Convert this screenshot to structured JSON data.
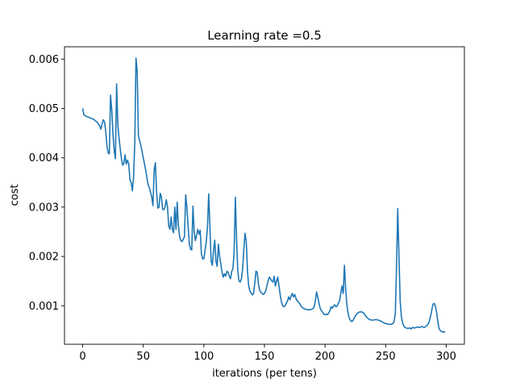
{
  "chart_data": {
    "type": "line",
    "title": "Learning rate =0.5",
    "xlabel": "iterations (per tens)",
    "ylabel": "cost",
    "xlim": [
      -15,
      315
    ],
    "ylim": [
      0.00022,
      0.00625
    ],
    "xticks": [
      0,
      50,
      100,
      150,
      200,
      250,
      300
    ],
    "yticks": [
      0.001,
      0.002,
      0.003,
      0.004,
      0.005,
      0.006
    ],
    "ytick_labels": [
      "0.001",
      "0.002",
      "0.003",
      "0.004",
      "0.005",
      "0.006"
    ],
    "grid": false,
    "line_color": "#1f77b4",
    "series": [
      {
        "points": [
          [
            0,
            0.005
          ],
          [
            1,
            0.00487
          ],
          [
            3,
            0.00484
          ],
          [
            6,
            0.00481
          ],
          [
            9,
            0.00478
          ],
          [
            12,
            0.00472
          ],
          [
            14,
            0.00465
          ],
          [
            15,
            0.00458
          ],
          [
            16,
            0.00468
          ],
          [
            17,
            0.00477
          ],
          [
            18,
            0.00473
          ],
          [
            19,
            0.00455
          ],
          [
            20,
            0.00425
          ],
          [
            21,
            0.0041
          ],
          [
            22,
            0.00408
          ],
          [
            23,
            0.00527
          ],
          [
            24,
            0.00497
          ],
          [
            25,
            0.00448
          ],
          [
            26,
            0.00415
          ],
          [
            27,
            0.00398
          ],
          [
            28,
            0.0055
          ],
          [
            29,
            0.00467
          ],
          [
            30,
            0.0044
          ],
          [
            31,
            0.00418
          ],
          [
            32,
            0.00398
          ],
          [
            33,
            0.00385
          ],
          [
            34,
            0.00389
          ],
          [
            35,
            0.00406
          ],
          [
            36,
            0.00387
          ],
          [
            37,
            0.00395
          ],
          [
            38,
            0.00388
          ],
          [
            39,
            0.00355
          ],
          [
            40,
            0.0035
          ],
          [
            41,
            0.00333
          ],
          [
            42,
            0.0036
          ],
          [
            43,
            0.0043
          ],
          [
            44,
            0.00602
          ],
          [
            45,
            0.00575
          ],
          [
            46,
            0.00445
          ],
          [
            47,
            0.00435
          ],
          [
            48,
            0.00425
          ],
          [
            50,
            0.004
          ],
          [
            52,
            0.00375
          ],
          [
            54,
            0.00345
          ],
          [
            55,
            0.0034
          ],
          [
            56,
            0.0033
          ],
          [
            57,
            0.0032
          ],
          [
            58,
            0.00303
          ],
          [
            59,
            0.00375
          ],
          [
            60,
            0.0039
          ],
          [
            61,
            0.0033
          ],
          [
            62,
            0.00298
          ],
          [
            63,
            0.003
          ],
          [
            64,
            0.00328
          ],
          [
            65,
            0.0032
          ],
          [
            66,
            0.00295
          ],
          [
            67,
            0.00295
          ],
          [
            68,
            0.003
          ],
          [
            69,
            0.00315
          ],
          [
            70,
            0.003
          ],
          [
            71,
            0.00262
          ],
          [
            72,
            0.00255
          ],
          [
            73,
            0.0028
          ],
          [
            74,
            0.00255
          ],
          [
            75,
            0.00248
          ],
          [
            76,
            0.003
          ],
          [
            77,
            0.00255
          ],
          [
            78,
            0.0031
          ],
          [
            79,
            0.00262
          ],
          [
            80,
            0.0024
          ],
          [
            81,
            0.00232
          ],
          [
            82,
            0.0023
          ],
          [
            83,
            0.00235
          ],
          [
            84,
            0.0024
          ],
          [
            85,
            0.00325
          ],
          [
            86,
            0.003
          ],
          [
            87,
            0.00262
          ],
          [
            88,
            0.00225
          ],
          [
            89,
            0.00215
          ],
          [
            90,
            0.00213
          ],
          [
            91,
            0.00302
          ],
          [
            92,
            0.0025
          ],
          [
            93,
            0.00232
          ],
          [
            94,
            0.00243
          ],
          [
            95,
            0.00255
          ],
          [
            96,
            0.00245
          ],
          [
            97,
            0.00253
          ],
          [
            98,
            0.00205
          ],
          [
            99,
            0.00195
          ],
          [
            100,
            0.00195
          ],
          [
            101,
            0.00213
          ],
          [
            102,
            0.0023
          ],
          [
            103,
            0.0026
          ],
          [
            104,
            0.00327
          ],
          [
            105,
            0.0026
          ],
          [
            106,
            0.0019
          ],
          [
            107,
            0.00182
          ],
          [
            108,
            0.00212
          ],
          [
            109,
            0.00233
          ],
          [
            110,
            0.0019
          ],
          [
            111,
            0.0018
          ],
          [
            112,
            0.00225
          ],
          [
            113,
            0.002
          ],
          [
            114,
            0.00185
          ],
          [
            115,
            0.00168
          ],
          [
            116,
            0.00158
          ],
          [
            117,
            0.00165
          ],
          [
            118,
            0.0016
          ],
          [
            119,
            0.0017
          ],
          [
            120,
            0.00168
          ],
          [
            121,
            0.0016
          ],
          [
            122,
            0.00155
          ],
          [
            123,
            0.0017
          ],
          [
            124,
            0.00175
          ],
          [
            125,
            0.0021
          ],
          [
            126,
            0.0032
          ],
          [
            127,
            0.00235
          ],
          [
            128,
            0.0017
          ],
          [
            129,
            0.0015
          ],
          [
            130,
            0.00148
          ],
          [
            131,
            0.00155
          ],
          [
            132,
            0.00175
          ],
          [
            133,
            0.00215
          ],
          [
            134,
            0.00247
          ],
          [
            135,
            0.0023
          ],
          [
            136,
            0.0017
          ],
          [
            137,
            0.0014
          ],
          [
            138,
            0.0013
          ],
          [
            139,
            0.00126
          ],
          [
            140,
            0.00122
          ],
          [
            141,
            0.00125
          ],
          [
            142,
            0.00145
          ],
          [
            143,
            0.0017
          ],
          [
            144,
            0.00168
          ],
          [
            145,
            0.00145
          ],
          [
            146,
            0.00132
          ],
          [
            147,
            0.00128
          ],
          [
            148,
            0.00125
          ],
          [
            149,
            0.00123
          ],
          [
            150,
            0.00125
          ],
          [
            151,
            0.0013
          ],
          [
            152,
            0.0014
          ],
          [
            153,
            0.0015
          ],
          [
            154,
            0.00158
          ],
          [
            155,
            0.00155
          ],
          [
            156,
            0.0015
          ],
          [
            157,
            0.00148
          ],
          [
            158,
            0.0016
          ],
          [
            159,
            0.0014
          ],
          [
            160,
            0.0015
          ],
          [
            161,
            0.00158
          ],
          [
            162,
            0.0014
          ],
          [
            163,
            0.00122
          ],
          [
            164,
            0.00108
          ],
          [
            165,
            0.001
          ],
          [
            166,
            0.00098
          ],
          [
            167,
            0.001
          ],
          [
            168,
            0.00105
          ],
          [
            169,
            0.0011
          ],
          [
            170,
            0.00118
          ],
          [
            171,
            0.00112
          ],
          [
            172,
            0.0012
          ],
          [
            173,
            0.00125
          ],
          [
            174,
            0.00118
          ],
          [
            175,
            0.00123
          ],
          [
            176,
            0.00115
          ],
          [
            177,
            0.0011
          ],
          [
            178,
            0.00108
          ],
          [
            179,
            0.00105
          ],
          [
            180,
            0.001
          ],
          [
            182,
            0.00095
          ],
          [
            184,
            0.00093
          ],
          [
            186,
            0.00092
          ],
          [
            188,
            0.00092
          ],
          [
            190,
            0.00094
          ],
          [
            191,
            0.00098
          ],
          [
            192,
            0.0011
          ],
          [
            193,
            0.00128
          ],
          [
            194,
            0.00118
          ],
          [
            195,
            0.00105
          ],
          [
            196,
            0.00095
          ],
          [
            197,
            0.0009
          ],
          [
            198,
            0.00087
          ],
          [
            199,
            0.00083
          ],
          [
            200,
            0.00082
          ],
          [
            201,
            0.00083
          ],
          [
            202,
            0.00082
          ],
          [
            203,
            0.00085
          ],
          [
            204,
            0.0009
          ],
          [
            205,
            0.00098
          ],
          [
            206,
            0.00095
          ],
          [
            207,
            0.001
          ],
          [
            208,
            0.00102
          ],
          [
            209,
            0.00098
          ],
          [
            210,
            0.001
          ],
          [
            211,
            0.00105
          ],
          [
            212,
            0.0011
          ],
          [
            213,
            0.00125
          ],
          [
            214,
            0.0014
          ],
          [
            215,
            0.00125
          ],
          [
            216,
            0.00182
          ],
          [
            217,
            0.00135
          ],
          [
            218,
            0.00102
          ],
          [
            219,
            0.00085
          ],
          [
            220,
            0.00075
          ],
          [
            221,
            0.0007
          ],
          [
            222,
            0.00068
          ],
          [
            223,
            0.0007
          ],
          [
            224,
            0.00075
          ],
          [
            226,
            0.00083
          ],
          [
            228,
            0.00087
          ],
          [
            230,
            0.00088
          ],
          [
            232,
            0.00085
          ],
          [
            234,
            0.00078
          ],
          [
            236,
            0.00073
          ],
          [
            238,
            0.00071
          ],
          [
            240,
            0.00071
          ],
          [
            242,
            0.00072
          ],
          [
            244,
            0.00071
          ],
          [
            246,
            0.00069
          ],
          [
            248,
            0.00066
          ],
          [
            250,
            0.00064
          ],
          [
            252,
            0.00063
          ],
          [
            254,
            0.00062
          ],
          [
            256,
            0.00064
          ],
          [
            257,
            0.00068
          ],
          [
            258,
            0.00085
          ],
          [
            259,
            0.0018
          ],
          [
            260,
            0.00297
          ],
          [
            261,
            0.002
          ],
          [
            262,
            0.0011
          ],
          [
            263,
            0.00078
          ],
          [
            264,
            0.00065
          ],
          [
            265,
            0.00059
          ],
          [
            266,
            0.00056
          ],
          [
            267,
            0.00055
          ],
          [
            268,
            0.00054
          ],
          [
            270,
            0.00055
          ],
          [
            271,
            0.00053
          ],
          [
            272,
            0.00056
          ],
          [
            274,
            0.00055
          ],
          [
            276,
            0.00057
          ],
          [
            278,
            0.00056
          ],
          [
            280,
            0.00058
          ],
          [
            282,
            0.00056
          ],
          [
            284,
            0.0006
          ],
          [
            285,
            0.00063
          ],
          [
            286,
            0.00068
          ],
          [
            287,
            0.00078
          ],
          [
            288,
            0.0009
          ],
          [
            289,
            0.00103
          ],
          [
            290,
            0.00105
          ],
          [
            291,
            0.001
          ],
          [
            292,
            0.00088
          ],
          [
            293,
            0.0007
          ],
          [
            294,
            0.00055
          ],
          [
            295,
            0.0005
          ],
          [
            296,
            0.00048
          ],
          [
            297,
            0.00047
          ],
          [
            298,
            0.00048
          ],
          [
            299,
            0.00046
          ]
        ]
      }
    ]
  }
}
